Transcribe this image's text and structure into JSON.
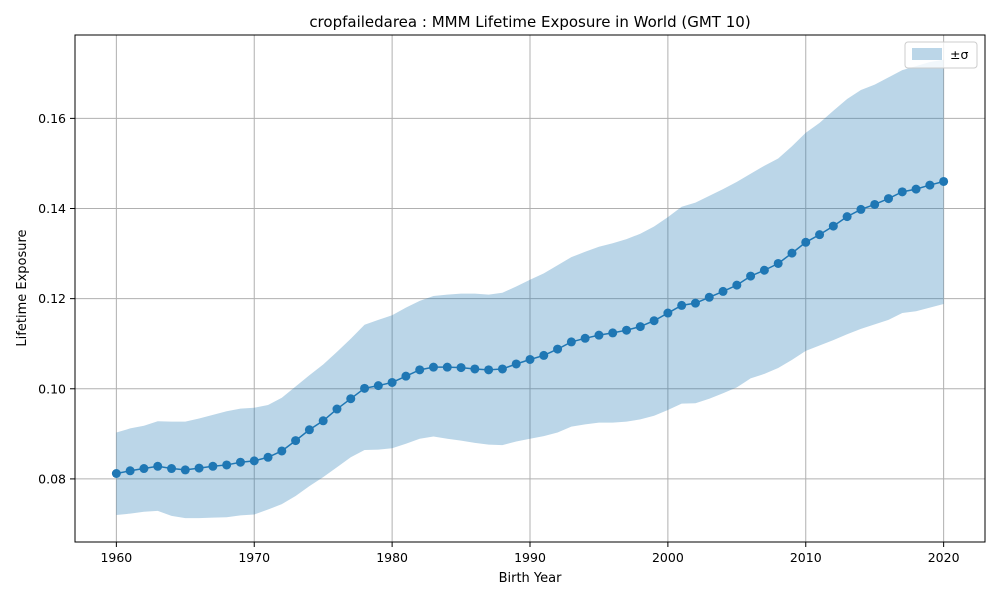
{
  "chart_data": {
    "type": "line",
    "title": "cropfailedarea : MMM Lifetime Exposure in World (GMT 10)",
    "xlabel": "Birth Year",
    "ylabel": "Lifetime Exposure",
    "xlim": [
      1957,
      2023
    ],
    "ylim": [
      0.066,
      0.1785
    ],
    "xticks": [
      1960,
      1970,
      1980,
      1990,
      2000,
      2010,
      2020
    ],
    "yticks": [
      0.08,
      0.1,
      0.12,
      0.14,
      0.16
    ],
    "ytick_labels": [
      "0.08",
      "0.10",
      "0.12",
      "0.14",
      "0.16"
    ],
    "grid": true,
    "legend": {
      "position": "top-right",
      "entries": [
        "±σ"
      ]
    },
    "colors": {
      "line": "#1f77b4",
      "band": "#1f77b4",
      "band_opacity": 0.3,
      "grid": "#b0b0b0"
    },
    "x": [
      1960,
      1961,
      1962,
      1963,
      1964,
      1965,
      1966,
      1967,
      1968,
      1969,
      1970,
      1971,
      1972,
      1973,
      1974,
      1975,
      1976,
      1977,
      1978,
      1979,
      1980,
      1981,
      1982,
      1983,
      1984,
      1985,
      1986,
      1987,
      1988,
      1989,
      1990,
      1991,
      1992,
      1993,
      1994,
      1995,
      1996,
      1997,
      1998,
      1999,
      2000,
      2001,
      2002,
      2003,
      2004,
      2005,
      2006,
      2007,
      2008,
      2009,
      2010,
      2011,
      2012,
      2013,
      2014,
      2015,
      2016,
      2017,
      2018,
      2019,
      2020
    ],
    "series": [
      {
        "name": "mean",
        "values": [
          0.0812,
          0.0818,
          0.0823,
          0.0828,
          0.0823,
          0.082,
          0.0824,
          0.0828,
          0.0831,
          0.0837,
          0.084,
          0.0848,
          0.0862,
          0.0885,
          0.0909,
          0.0929,
          0.0955,
          0.0978,
          0.1001,
          0.1007,
          0.1014,
          0.1028,
          0.1042,
          0.1048,
          0.1048,
          0.1047,
          0.1044,
          0.1042,
          0.1044,
          0.1055,
          0.1065,
          0.1074,
          0.1088,
          0.1104,
          0.1112,
          0.1119,
          0.1124,
          0.113,
          0.1138,
          0.1151,
          0.1168,
          0.1185,
          0.119,
          0.1203,
          0.1216,
          0.123,
          0.125,
          0.1263,
          0.1278,
          0.1301,
          0.1325,
          0.1342,
          0.1361,
          0.1382,
          0.1398,
          0.1409,
          0.1422,
          0.1437,
          0.1443,
          0.1452,
          0.146
        ]
      },
      {
        "name": "upper",
        "values": [
          0.0903,
          0.0912,
          0.0918,
          0.0928,
          0.0927,
          0.0927,
          0.0934,
          0.0942,
          0.095,
          0.0956,
          0.0958,
          0.0964,
          0.098,
          0.1005,
          0.103,
          0.1054,
          0.1082,
          0.1111,
          0.1142,
          0.1153,
          0.1163,
          0.118,
          0.1195,
          0.1206,
          0.1209,
          0.1211,
          0.1211,
          0.1209,
          0.1213,
          0.1227,
          0.1242,
          0.1256,
          0.1274,
          0.1292,
          0.1304,
          0.1315,
          0.1323,
          0.1332,
          0.1344,
          0.136,
          0.1381,
          0.1404,
          0.1413,
          0.1428,
          0.1443,
          0.1459,
          0.1477,
          0.1495,
          0.1511,
          0.1538,
          0.1568,
          0.159,
          0.1617,
          0.1643,
          0.1663,
          0.1675,
          0.1691,
          0.1707,
          0.1716,
          0.1725,
          0.173
        ]
      },
      {
        "name": "lower",
        "values": [
          0.072,
          0.0723,
          0.0727,
          0.0729,
          0.0718,
          0.0713,
          0.0713,
          0.0714,
          0.0715,
          0.0719,
          0.0721,
          0.0732,
          0.0744,
          0.0762,
          0.0784,
          0.0804,
          0.0826,
          0.0848,
          0.0864,
          0.0865,
          0.0868,
          0.0878,
          0.0889,
          0.0894,
          0.0889,
          0.0885,
          0.088,
          0.0876,
          0.0875,
          0.0883,
          0.0889,
          0.0895,
          0.0903,
          0.0916,
          0.0921,
          0.0925,
          0.0925,
          0.0927,
          0.0932,
          0.094,
          0.0953,
          0.0967,
          0.0968,
          0.0978,
          0.099,
          0.1003,
          0.1023,
          0.1033,
          0.1046,
          0.1064,
          0.1084,
          0.1096,
          0.1108,
          0.1121,
          0.1133,
          0.1143,
          0.1153,
          0.1168,
          0.1172,
          0.118,
          0.1188
        ]
      }
    ]
  }
}
